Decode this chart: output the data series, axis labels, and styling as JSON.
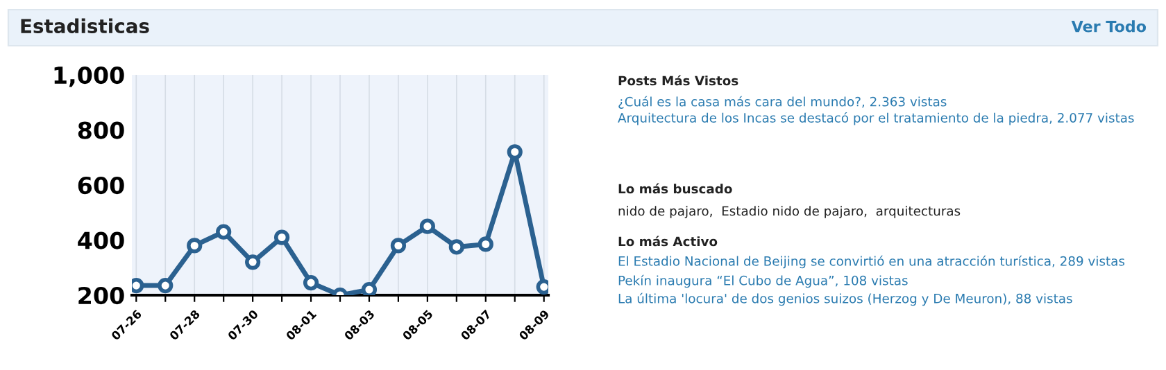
{
  "chart_data": {
    "type": "line",
    "title": "Estadisticas",
    "categories": [
      "07-26",
      null,
      "07-28",
      null,
      "07-30",
      null,
      "08-01",
      null,
      "08-03",
      null,
      "08-05",
      null,
      "08-07",
      null,
      "08-09"
    ],
    "series": [
      {
        "color": "#2b6190",
        "values": [
          235,
          235,
          380,
          430,
          320,
          410,
          245,
          200,
          220,
          380,
          450,
          375,
          385,
          720,
          230
        ]
      }
    ],
    "ylim": [
      200,
      1000
    ],
    "yticks": [
      200,
      400,
      600,
      800,
      {
        "value": 1000,
        "label": "1,000"
      }
    ],
    "grid": "x",
    "marker": "circle",
    "line_style": "solid",
    "annotations": [
      "Ver Todo",
      "Posts Más Vistos",
      "¿Cuál es la casa más cara del mundo?, 2.363 vistas",
      "Arquitectura de los Incas se destacó por el tratamiento de la piedra, 2.077 vistas",
      "Lo más buscado",
      "nido de pajaro,  Estadio nido de pajaro,  arquitecturas",
      "Lo más Activo",
      "El Estadio Nacional de Beijing se convirtió en una atracción turística, 289 vistas",
      "Pekín inaugura “El Cubo de Agua”, 108 vistas",
      "La última 'locura' de dos genios suizos (Herzog y De Meuron), 88 vistas"
    ]
  }
}
